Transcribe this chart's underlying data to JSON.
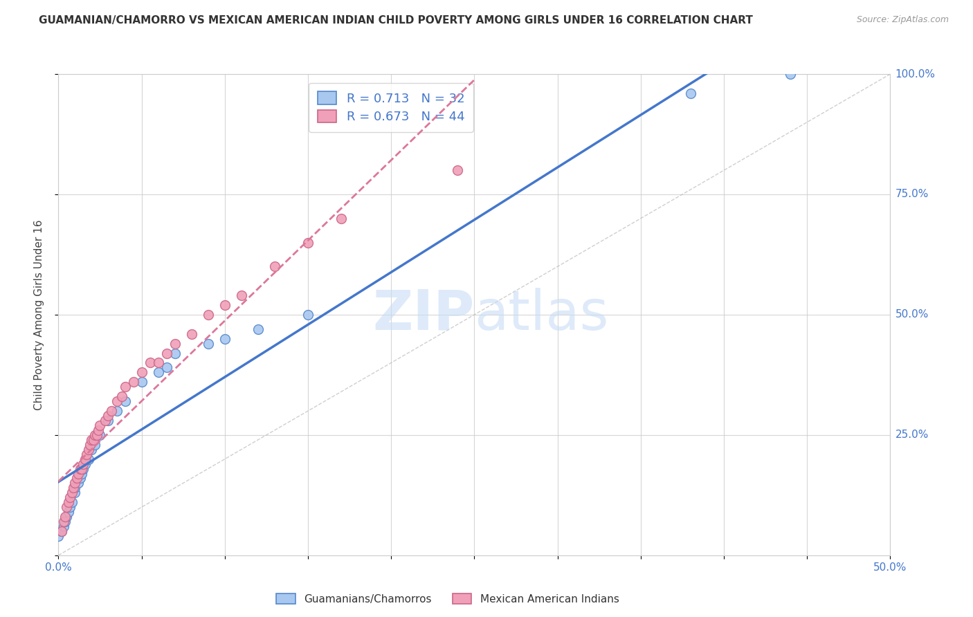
{
  "title": "GUAMANIAN/CHAMORRO VS MEXICAN AMERICAN INDIAN CHILD POVERTY AMONG GIRLS UNDER 16 CORRELATION CHART",
  "source": "Source: ZipAtlas.com",
  "ylabel": "Child Poverty Among Girls Under 16",
  "xlim": [
    0.0,
    0.5
  ],
  "ylim": [
    0.0,
    1.0
  ],
  "watermark": "ZIPatlas",
  "blue_R": 0.713,
  "blue_N": 32,
  "pink_R": 0.673,
  "pink_N": 44,
  "blue_fill": "#a8c8f0",
  "pink_fill": "#f0a0b8",
  "blue_edge": "#5588cc",
  "pink_edge": "#cc6688",
  "blue_line": "#4477cc",
  "pink_line": "#dd7799",
  "legend1_label": "Guamanians/Chamorros",
  "legend2_label": "Mexican American Indians",
  "blue_scatter_x": [
    0.0,
    0.002,
    0.003,
    0.004,
    0.005,
    0.006,
    0.007,
    0.008,
    0.01,
    0.01,
    0.012,
    0.013,
    0.014,
    0.015,
    0.016,
    0.018,
    0.02,
    0.022,
    0.025,
    0.03,
    0.035,
    0.04,
    0.05,
    0.06,
    0.065,
    0.07,
    0.09,
    0.1,
    0.12,
    0.15,
    0.38,
    0.44
  ],
  "blue_scatter_y": [
    0.04,
    0.05,
    0.06,
    0.07,
    0.08,
    0.09,
    0.1,
    0.11,
    0.13,
    0.14,
    0.15,
    0.16,
    0.17,
    0.18,
    0.19,
    0.2,
    0.22,
    0.23,
    0.25,
    0.28,
    0.3,
    0.32,
    0.36,
    0.38,
    0.39,
    0.42,
    0.44,
    0.45,
    0.47,
    0.5,
    0.96,
    1.0
  ],
  "pink_scatter_x": [
    0.002,
    0.003,
    0.004,
    0.005,
    0.006,
    0.007,
    0.008,
    0.009,
    0.01,
    0.011,
    0.012,
    0.013,
    0.014,
    0.015,
    0.016,
    0.017,
    0.018,
    0.019,
    0.02,
    0.021,
    0.022,
    0.023,
    0.024,
    0.025,
    0.028,
    0.03,
    0.032,
    0.035,
    0.038,
    0.04,
    0.045,
    0.05,
    0.055,
    0.06,
    0.065,
    0.07,
    0.08,
    0.09,
    0.1,
    0.11,
    0.13,
    0.15,
    0.17,
    0.24
  ],
  "pink_scatter_y": [
    0.05,
    0.07,
    0.08,
    0.1,
    0.11,
    0.12,
    0.13,
    0.14,
    0.15,
    0.16,
    0.17,
    0.18,
    0.18,
    0.19,
    0.2,
    0.21,
    0.22,
    0.23,
    0.24,
    0.24,
    0.25,
    0.25,
    0.26,
    0.27,
    0.28,
    0.29,
    0.3,
    0.32,
    0.33,
    0.35,
    0.36,
    0.38,
    0.4,
    0.4,
    0.42,
    0.44,
    0.46,
    0.5,
    0.52,
    0.54,
    0.6,
    0.65,
    0.7,
    0.8
  ],
  "grid_color": "#cccccc",
  "bg_color": "#ffffff",
  "tick_color": "#4477cc",
  "ref_line_color": "#bbbbbb"
}
